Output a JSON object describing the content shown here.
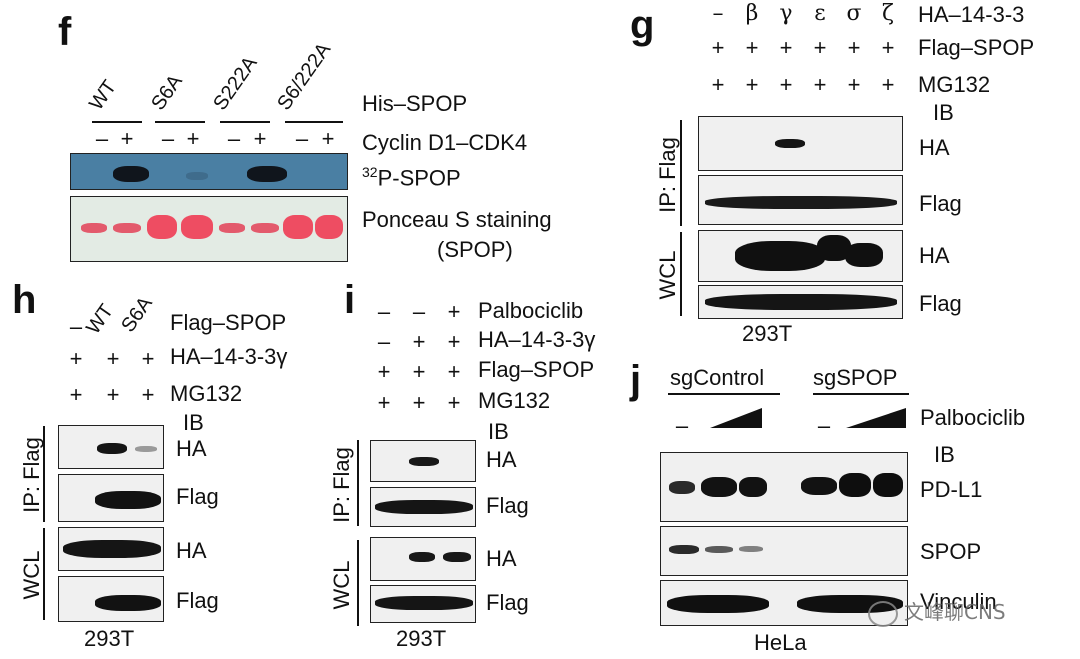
{
  "panel_f": {
    "letter": "f",
    "lanes": [
      "WT",
      "S6A",
      "S222A",
      "S6/222A"
    ],
    "rows": [
      "His–SPOP",
      "Cyclin D1–CDK4"
    ],
    "signs": [
      "–",
      "+",
      "–",
      "+",
      "–",
      "+",
      "–",
      "+"
    ],
    "blot1_sup": "32",
    "blot1_label": "P-SPOP",
    "blot2_label_line1": "Ponceau S staining",
    "blot2_label_line2": "(SPOP)"
  },
  "panel_g": {
    "letter": "g",
    "isoforms": [
      "–",
      "β",
      "γ",
      "ε",
      "σ",
      "ζ"
    ],
    "row_labels": [
      "HA–14-3-3",
      "Flag–SPOP",
      "MG132"
    ],
    "plus": [
      "+",
      "+",
      "+",
      "+",
      "+",
      "+"
    ],
    "ib": "IB",
    "ip_label": "IP: Flag",
    "wcl_label": "WCL",
    "blot_labels": [
      "HA",
      "Flag",
      "HA",
      "Flag"
    ],
    "cell_line": "293T"
  },
  "panel_h": {
    "letter": "h",
    "lanes": [
      "–",
      "WT",
      "S6A"
    ],
    "row_labels": [
      "Flag–SPOP",
      "HA–14-3-3γ",
      "MG132"
    ],
    "plus": [
      "+",
      "+",
      "+"
    ],
    "ib": "IB",
    "ip_label": "IP: Flag",
    "wcl_label": "WCL",
    "blot_labels": [
      "HA",
      "Flag",
      "HA",
      "Flag"
    ],
    "cell_line": "293T"
  },
  "panel_i": {
    "letter": "i",
    "row_labels": [
      "Palbociclib",
      "HA–14-3-3γ",
      "Flag–SPOP",
      "MG132"
    ],
    "row_signs": [
      [
        "–",
        "–",
        "+"
      ],
      [
        "–",
        "+",
        "+"
      ],
      [
        "+",
        "+",
        "+"
      ],
      [
        "+",
        "+",
        "+"
      ]
    ],
    "ib": "IB",
    "ip_label": "IP: Flag",
    "wcl_label": "WCL",
    "blot_labels": [
      "HA",
      "Flag",
      "HA",
      "Flag"
    ],
    "cell_line": "293T"
  },
  "panel_j": {
    "letter": "j",
    "groups": [
      "sgControl",
      "sgSPOP"
    ],
    "minus": "–",
    "treatment": "Palbociclib",
    "ib": "IB",
    "blot_labels": [
      "PD-L1",
      "SPOP",
      "Vinculin"
    ],
    "cell_line": "HeLa"
  },
  "watermark": "文峰聊CNS"
}
